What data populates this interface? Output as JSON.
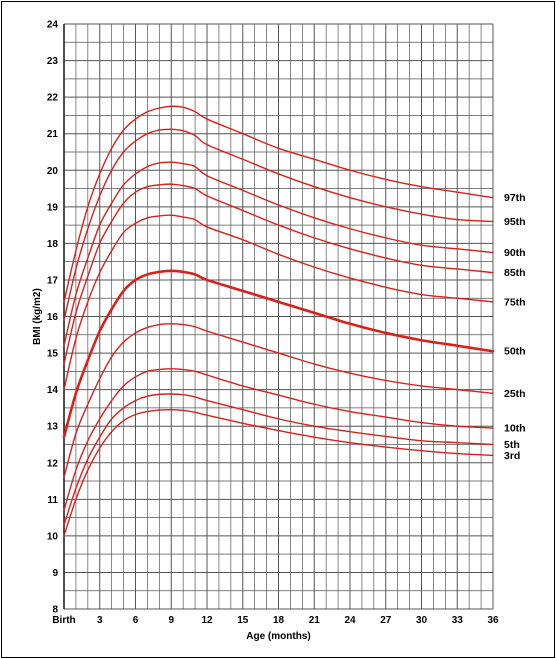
{
  "chart_data": {
    "type": "line",
    "title": "",
    "xlabel": "Age (months)",
    "ylabel": "BMI (kg/m2)",
    "xlim": [
      0,
      36
    ],
    "ylim": [
      8,
      24
    ],
    "x_tick_labels": [
      "Birth",
      "3",
      "6",
      "9",
      "12",
      "15",
      "18",
      "21",
      "24",
      "27",
      "30",
      "33",
      "36"
    ],
    "x_tick_values": [
      0,
      3,
      6,
      9,
      12,
      15,
      18,
      21,
      24,
      27,
      30,
      33,
      36
    ],
    "y_tick_values": [
      8,
      9,
      10,
      11,
      12,
      13,
      14,
      15,
      16,
      17,
      18,
      19,
      20,
      21,
      22,
      23,
      24
    ],
    "grid": true,
    "line_color": "#d8211c",
    "grid_color": "#555555",
    "x": [
      0,
      1,
      2,
      3,
      4,
      5,
      6,
      7,
      8,
      9,
      10,
      11,
      12,
      15,
      18,
      21,
      24,
      27,
      30,
      33,
      36
    ],
    "series": [
      {
        "name": "97th",
        "values": [
          16.4,
          17.8,
          19.0,
          19.9,
          20.6,
          21.1,
          21.4,
          21.6,
          21.7,
          21.75,
          21.72,
          21.6,
          21.4,
          21.0,
          20.6,
          20.3,
          20.0,
          19.75,
          19.55,
          19.4,
          19.25
        ]
      },
      {
        "name": "95th",
        "values": [
          15.9,
          17.3,
          18.4,
          19.3,
          20.0,
          20.5,
          20.8,
          21.0,
          21.1,
          21.12,
          21.08,
          20.95,
          20.7,
          20.3,
          19.9,
          19.55,
          19.25,
          19.0,
          18.8,
          18.65,
          18.6
        ]
      },
      {
        "name": "90th",
        "values": [
          15.2,
          16.6,
          17.6,
          18.5,
          19.1,
          19.6,
          19.9,
          20.1,
          20.2,
          20.22,
          20.18,
          20.1,
          19.85,
          19.45,
          19.05,
          18.7,
          18.4,
          18.15,
          17.95,
          17.85,
          17.75
        ]
      },
      {
        "name": "85th",
        "values": [
          14.7,
          16.1,
          17.1,
          18.0,
          18.6,
          19.1,
          19.4,
          19.55,
          19.6,
          19.62,
          19.58,
          19.5,
          19.3,
          18.9,
          18.5,
          18.15,
          17.85,
          17.6,
          17.4,
          17.3,
          17.2
        ]
      },
      {
        "name": "75th",
        "values": [
          14.0,
          15.4,
          16.4,
          17.2,
          17.8,
          18.3,
          18.55,
          18.7,
          18.75,
          18.77,
          18.72,
          18.65,
          18.45,
          18.1,
          17.7,
          17.35,
          17.05,
          16.8,
          16.6,
          16.5,
          16.4
        ]
      },
      {
        "name": "50th",
        "values": [
          12.7,
          13.9,
          14.8,
          15.6,
          16.2,
          16.7,
          17.0,
          17.15,
          17.22,
          17.25,
          17.22,
          17.15,
          17.0,
          16.7,
          16.4,
          16.1,
          15.8,
          15.55,
          15.35,
          15.2,
          15.05
        ]
      },
      {
        "name": "25th",
        "values": [
          11.6,
          12.8,
          13.6,
          14.3,
          14.9,
          15.3,
          15.55,
          15.7,
          15.78,
          15.8,
          15.78,
          15.72,
          15.6,
          15.3,
          15.0,
          14.7,
          14.45,
          14.25,
          14.1,
          14.0,
          13.9
        ]
      },
      {
        "name": "10th",
        "values": [
          10.7,
          11.8,
          12.6,
          13.2,
          13.7,
          14.1,
          14.35,
          14.5,
          14.55,
          14.57,
          14.55,
          14.5,
          14.4,
          14.1,
          13.85,
          13.6,
          13.4,
          13.25,
          13.1,
          13.0,
          12.95
        ]
      },
      {
        "name": "5th",
        "values": [
          10.3,
          11.3,
          12.1,
          12.7,
          13.2,
          13.5,
          13.7,
          13.82,
          13.87,
          13.88,
          13.86,
          13.8,
          13.7,
          13.45,
          13.2,
          13.0,
          12.85,
          12.72,
          12.6,
          12.55,
          12.5
        ]
      },
      {
        "name": "3rd",
        "values": [
          10.0,
          11.0,
          11.8,
          12.4,
          12.85,
          13.15,
          13.32,
          13.4,
          13.44,
          13.45,
          13.43,
          13.38,
          13.3,
          13.08,
          12.88,
          12.7,
          12.55,
          12.43,
          12.33,
          12.25,
          12.2
        ]
      }
    ]
  }
}
